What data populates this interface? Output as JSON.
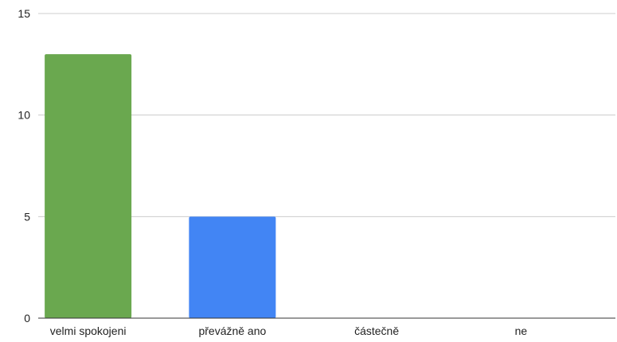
{
  "chart_data": {
    "type": "bar",
    "categories": [
      "velmi spokojeni",
      "převážně ano",
      "částečně",
      "ne"
    ],
    "values": [
      13,
      5,
      0,
      0
    ],
    "colors": [
      "#6aa84f",
      "#4285f4",
      "#4285f4",
      "#4285f4"
    ],
    "ylim": [
      0,
      15
    ],
    "yticks": [
      0,
      5,
      10,
      15
    ],
    "grid": true,
    "title": "",
    "xlabel": "",
    "ylabel": ""
  }
}
